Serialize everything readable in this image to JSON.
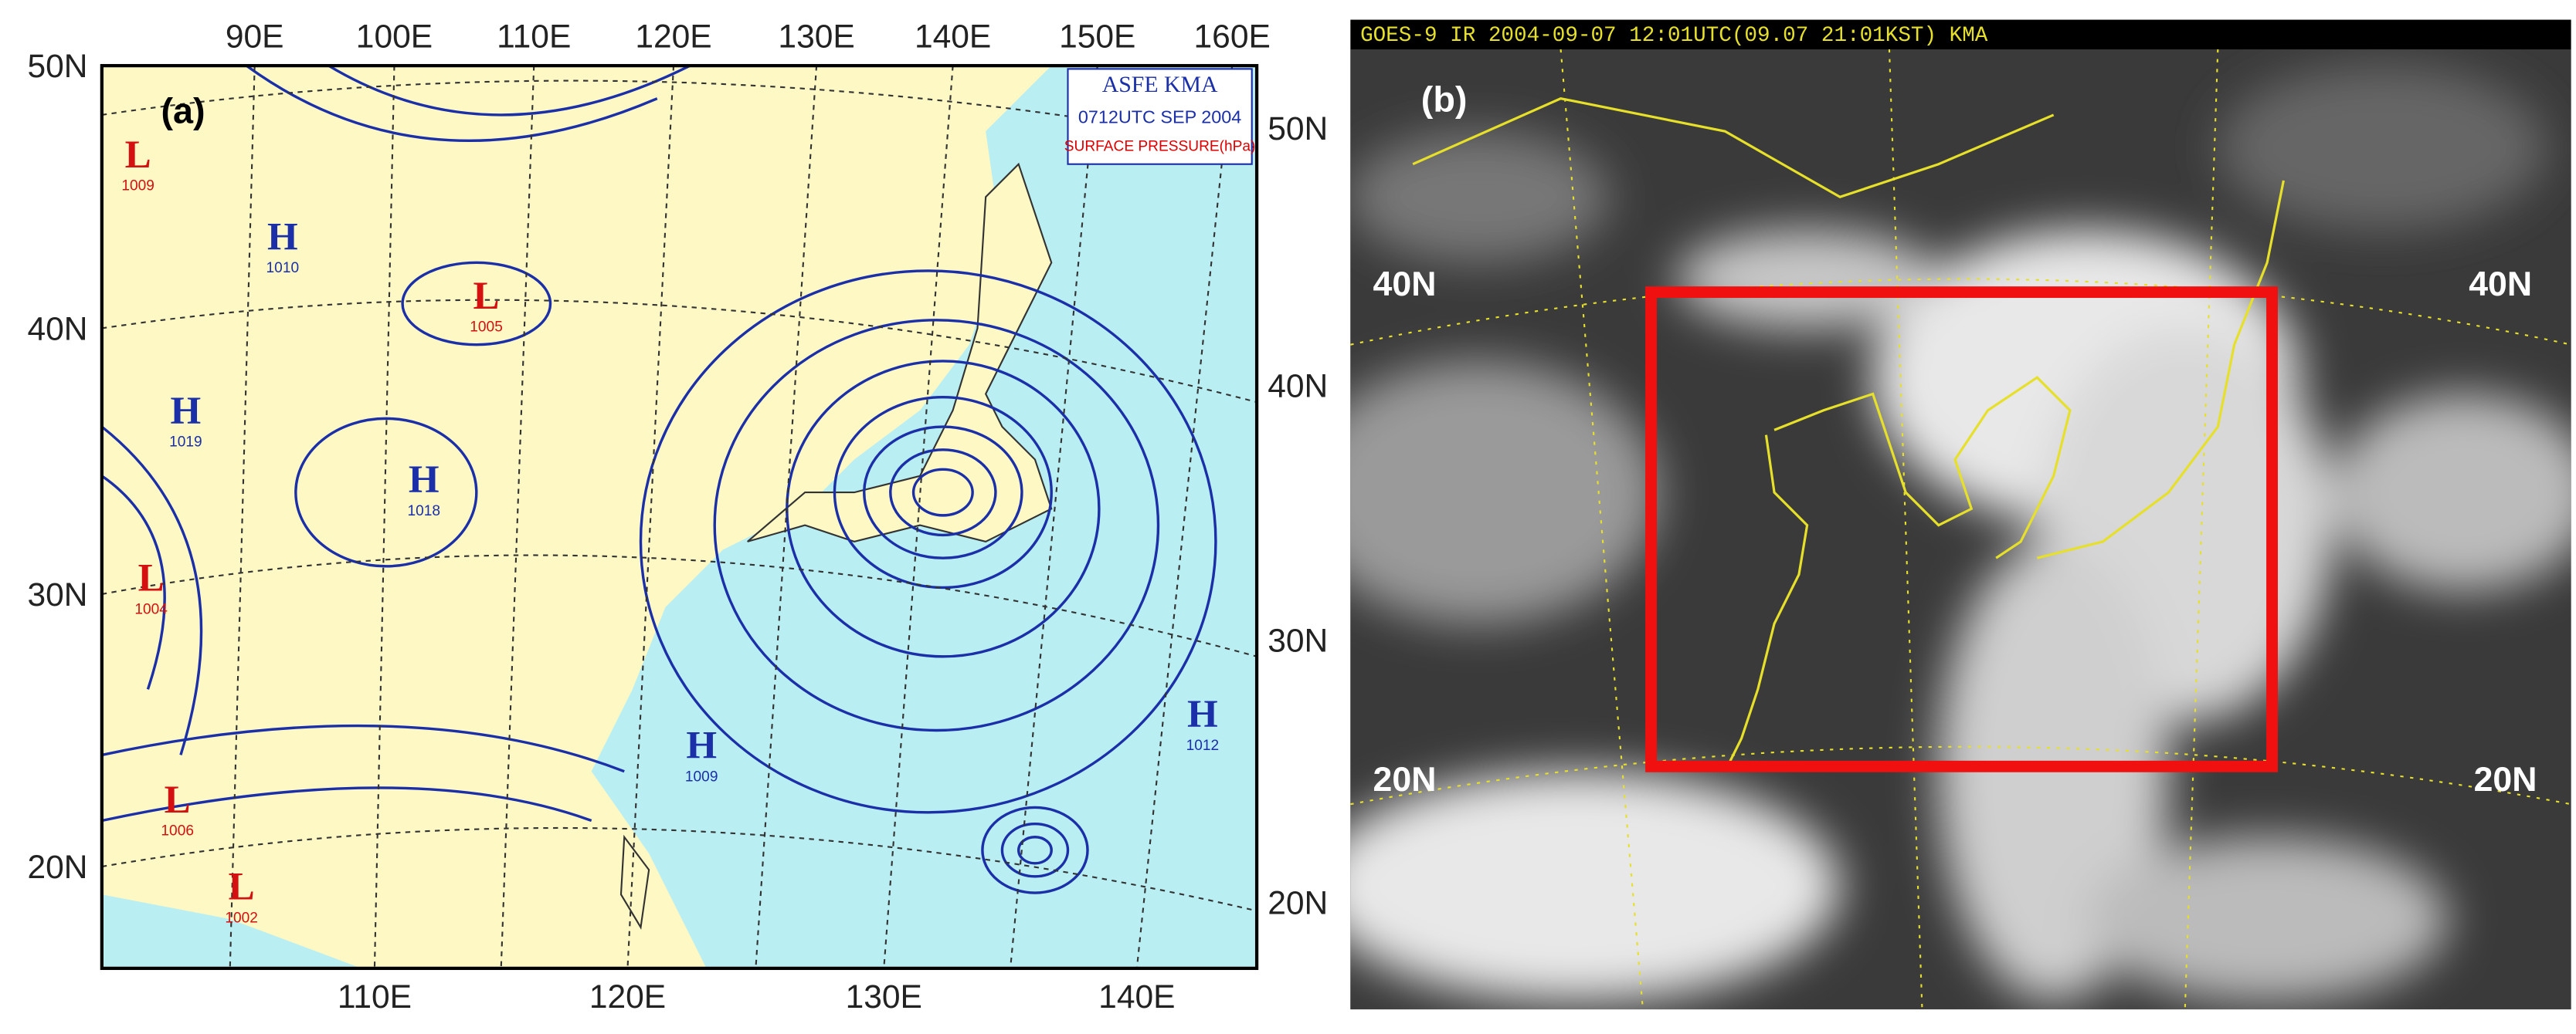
{
  "panel_a": {
    "label": "(a)",
    "top_longitudes": [
      "90E",
      "100E",
      "110E",
      "120E",
      "130E",
      "140E",
      "150E",
      "160E"
    ],
    "left_latitudes": [
      "50N",
      "40N",
      "30N",
      "20N"
    ],
    "right_latitudes": [
      "50N",
      "40N",
      "30N",
      "20N"
    ],
    "bottom_longitudes": [
      "110E",
      "120E",
      "130E",
      "140E"
    ],
    "legend": {
      "title": "ASFE  KMA",
      "time": "0712UTC SEP 2004",
      "field": "SURFACE PRESSURE(hPa)"
    },
    "pressure_systems": [
      {
        "symbol": "H",
        "value": "1010"
      },
      {
        "symbol": "H",
        "value": "1019"
      },
      {
        "symbol": "H",
        "value": "1018"
      },
      {
        "symbol": "H",
        "value": "1009"
      },
      {
        "symbol": "H",
        "value": "1012"
      },
      {
        "symbol": "L",
        "value": "1005"
      },
      {
        "symbol": "L",
        "value": "1009"
      },
      {
        "symbol": "L",
        "value": "1004"
      },
      {
        "symbol": "L",
        "value": "1006"
      },
      {
        "symbol": "L",
        "value": "1002"
      }
    ]
  },
  "panel_b": {
    "label": "(b)",
    "header": "GOES-9 IR 2004-09-07 12:01UTC(09.07 21:01KST) KMA",
    "latitude_labels": [
      "40N",
      "40N",
      "20N",
      "20N"
    ]
  }
}
